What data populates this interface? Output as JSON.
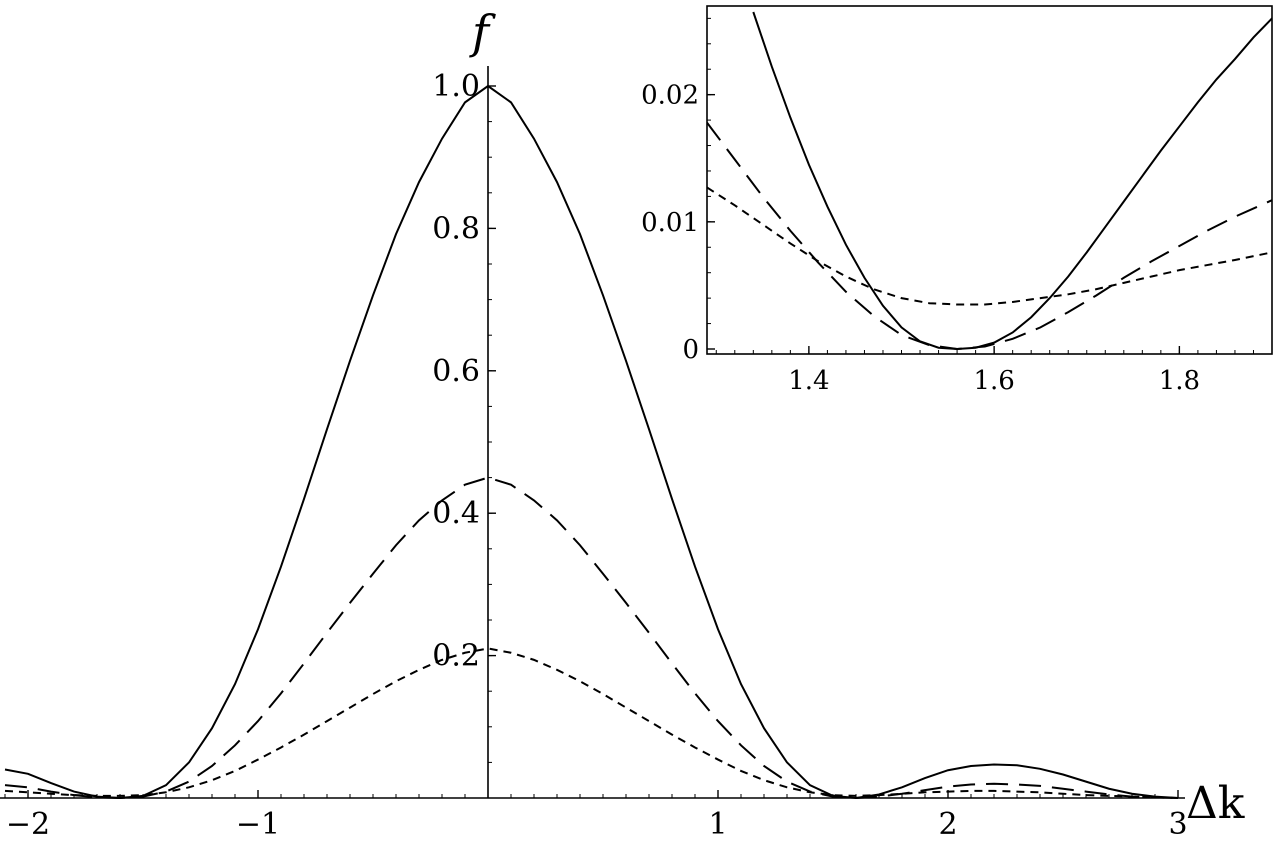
{
  "chart_data": [
    {
      "type": "line",
      "xlabel": "Δk",
      "ylabel": "f",
      "xlim": [
        -2.1,
        3.1
      ],
      "ylim": [
        0,
        1.02
      ],
      "x_ticks": [
        {
          "value": -2,
          "label": "−2"
        },
        {
          "value": -1,
          "label": "−1"
        },
        {
          "value": 1,
          "label": "1"
        },
        {
          "value": 2,
          "label": "2"
        },
        {
          "value": 3,
          "label": "3"
        }
      ],
      "y_ticks": [
        {
          "value": 0.2,
          "label": "0.2"
        },
        {
          "value": 0.4,
          "label": "0.4"
        },
        {
          "value": 0.6,
          "label": "0.6"
        },
        {
          "value": 0.8,
          "label": "0.8"
        },
        {
          "value": 1.0,
          "label": "1.0"
        }
      ],
      "x_minor_step": 0.1,
      "y_minor_step": 0.05,
      "grid": false,
      "legend": "none",
      "series": [
        {
          "style": "solid",
          "color": "#000000",
          "x": [
            -2.1,
            -2.0,
            -1.9,
            -1.8,
            -1.7,
            -1.6,
            -1.5,
            -1.4,
            -1.3,
            -1.2,
            -1.1,
            -1.0,
            -0.9,
            -0.8,
            -0.7,
            -0.6,
            -0.5,
            -0.4,
            -0.3,
            -0.2,
            -0.1,
            0.0,
            0.1,
            0.2,
            0.3,
            0.4,
            0.5,
            0.6,
            0.7,
            0.8,
            0.9,
            1.0,
            1.1,
            1.2,
            1.3,
            1.4,
            1.5,
            1.6,
            1.7,
            1.8,
            1.9,
            2.0,
            2.1,
            2.2,
            2.3,
            2.4,
            2.5,
            2.6,
            2.7,
            2.8,
            2.9,
            3.0
          ],
          "y": [
            0.04,
            0.034,
            0.021,
            0.009,
            0.002,
            0.0,
            0.003,
            0.018,
            0.05,
            0.098,
            0.16,
            0.237,
            0.325,
            0.42,
            0.518,
            0.614,
            0.706,
            0.792,
            0.865,
            0.926,
            0.977,
            1.0,
            0.977,
            0.926,
            0.865,
            0.792,
            0.706,
            0.614,
            0.518,
            0.42,
            0.325,
            0.237,
            0.16,
            0.098,
            0.05,
            0.018,
            0.003,
            0.0,
            0.005,
            0.015,
            0.028,
            0.039,
            0.045,
            0.047,
            0.046,
            0.041,
            0.033,
            0.023,
            0.013,
            0.006,
            0.002,
            0.0
          ]
        },
        {
          "style": "long-dash",
          "color": "#000000",
          "x": [
            -2.1,
            -2.0,
            -1.9,
            -1.8,
            -1.7,
            -1.6,
            -1.5,
            -1.4,
            -1.3,
            -1.2,
            -1.1,
            -1.0,
            -0.9,
            -0.8,
            -0.7,
            -0.6,
            -0.5,
            -0.4,
            -0.3,
            -0.2,
            -0.1,
            0.0,
            0.1,
            0.2,
            0.3,
            0.4,
            0.5,
            0.6,
            0.7,
            0.8,
            0.9,
            1.0,
            1.1,
            1.2,
            1.3,
            1.4,
            1.5,
            1.6,
            1.7,
            1.8,
            1.9,
            2.0,
            2.1,
            2.2,
            2.3,
            2.4,
            2.5,
            2.6,
            2.7,
            2.8,
            2.9,
            3.0
          ],
          "y": [
            0.018,
            0.015,
            0.009,
            0.004,
            0.001,
            0.0,
            0.002,
            0.009,
            0.023,
            0.045,
            0.074,
            0.108,
            0.147,
            0.189,
            0.232,
            0.274,
            0.315,
            0.355,
            0.39,
            0.418,
            0.44,
            0.45,
            0.44,
            0.418,
            0.39,
            0.355,
            0.315,
            0.274,
            0.232,
            0.189,
            0.147,
            0.108,
            0.074,
            0.045,
            0.023,
            0.009,
            0.002,
            0.0,
            0.002,
            0.006,
            0.011,
            0.016,
            0.019,
            0.02,
            0.019,
            0.017,
            0.013,
            0.009,
            0.005,
            0.002,
            0.001,
            0.0
          ]
        },
        {
          "style": "short-dash",
          "color": "#000000",
          "x": [
            -2.1,
            -2.0,
            -1.9,
            -1.8,
            -1.7,
            -1.6,
            -1.5,
            -1.4,
            -1.3,
            -1.2,
            -1.1,
            -1.0,
            -0.9,
            -0.8,
            -0.7,
            -0.6,
            -0.5,
            -0.4,
            -0.3,
            -0.2,
            -0.1,
            0.0,
            0.1,
            0.2,
            0.3,
            0.4,
            0.5,
            0.6,
            0.7,
            0.8,
            0.9,
            1.0,
            1.1,
            1.2,
            1.3,
            1.4,
            1.5,
            1.6,
            1.7,
            1.8,
            1.9,
            2.0,
            2.1,
            2.2,
            2.3,
            2.4,
            2.5,
            2.6,
            2.7,
            2.8,
            2.9,
            3.0
          ],
          "y": [
            0.01,
            0.008,
            0.006,
            0.004,
            0.003,
            0.003,
            0.004,
            0.008,
            0.015,
            0.025,
            0.038,
            0.054,
            0.071,
            0.089,
            0.108,
            0.127,
            0.146,
            0.164,
            0.18,
            0.194,
            0.204,
            0.21,
            0.204,
            0.194,
            0.18,
            0.164,
            0.146,
            0.127,
            0.108,
            0.089,
            0.071,
            0.054,
            0.038,
            0.025,
            0.015,
            0.008,
            0.004,
            0.003,
            0.004,
            0.006,
            0.008,
            0.009,
            0.01,
            0.01,
            0.009,
            0.008,
            0.006,
            0.004,
            0.003,
            0.002,
            0.001,
            0.0
          ]
        }
      ]
    },
    {
      "type": "line",
      "role": "inset",
      "xlabel": "",
      "ylabel": "",
      "xlim": [
        1.29,
        1.9
      ],
      "ylim": [
        0,
        0.0265
      ],
      "frame": true,
      "x_ticks": [
        {
          "value": 1.4,
          "label": "1.4"
        },
        {
          "value": 1.6,
          "label": "1.6"
        },
        {
          "value": 1.8,
          "label": "1.8"
        }
      ],
      "y_ticks": [
        {
          "value": 0.0,
          "label": "0"
        },
        {
          "value": 0.01,
          "label": "0.01"
        },
        {
          "value": 0.02,
          "label": "0.02"
        }
      ],
      "x_minor_step": 0.02,
      "y_minor_step": 0.002,
      "grid": false,
      "legend": "none",
      "series": [
        {
          "style": "solid",
          "color": "#000000",
          "x": [
            1.34,
            1.36,
            1.38,
            1.4,
            1.42,
            1.44,
            1.46,
            1.48,
            1.5,
            1.52,
            1.54,
            1.56,
            1.58,
            1.6,
            1.62,
            1.64,
            1.66,
            1.68,
            1.7,
            1.72,
            1.74,
            1.76,
            1.78,
            1.8,
            1.82,
            1.84,
            1.86,
            1.88,
            1.9
          ],
          "y": [
            0.0265,
            0.0222,
            0.0182,
            0.0145,
            0.0112,
            0.0082,
            0.0056,
            0.0034,
            0.0017,
            0.0006,
            0.0001,
            0.0,
            0.0001,
            0.0005,
            0.0013,
            0.0025,
            0.004,
            0.0057,
            0.0076,
            0.0096,
            0.0116,
            0.0136,
            0.0156,
            0.0175,
            0.0194,
            0.0212,
            0.0228,
            0.0245,
            0.026
          ]
        },
        {
          "style": "long-dash",
          "color": "#000000",
          "x": [
            1.29,
            1.32,
            1.35,
            1.38,
            1.41,
            1.44,
            1.47,
            1.5,
            1.53,
            1.56,
            1.59,
            1.62,
            1.65,
            1.68,
            1.71,
            1.74,
            1.77,
            1.8,
            1.83,
            1.86,
            1.9
          ],
          "y": [
            0.0178,
            0.0149,
            0.012,
            0.0093,
            0.0068,
            0.0045,
            0.0026,
            0.0011,
            0.0003,
            0.0,
            0.0002,
            0.0008,
            0.0017,
            0.0029,
            0.0042,
            0.0056,
            0.0069,
            0.0081,
            0.0093,
            0.0104,
            0.0117
          ]
        },
        {
          "style": "short-dash",
          "color": "#000000",
          "x": [
            1.29,
            1.32,
            1.35,
            1.38,
            1.41,
            1.44,
            1.47,
            1.5,
            1.53,
            1.56,
            1.59,
            1.62,
            1.65,
            1.68,
            1.71,
            1.74,
            1.77,
            1.8,
            1.83,
            1.86,
            1.9
          ],
          "y": [
            0.0127,
            0.0113,
            0.0098,
            0.0083,
            0.0069,
            0.0057,
            0.0047,
            0.004,
            0.0036,
            0.0035,
            0.0035,
            0.0037,
            0.004,
            0.0043,
            0.0047,
            0.0052,
            0.0057,
            0.0062,
            0.0066,
            0.007,
            0.0076
          ]
        }
      ]
    }
  ]
}
